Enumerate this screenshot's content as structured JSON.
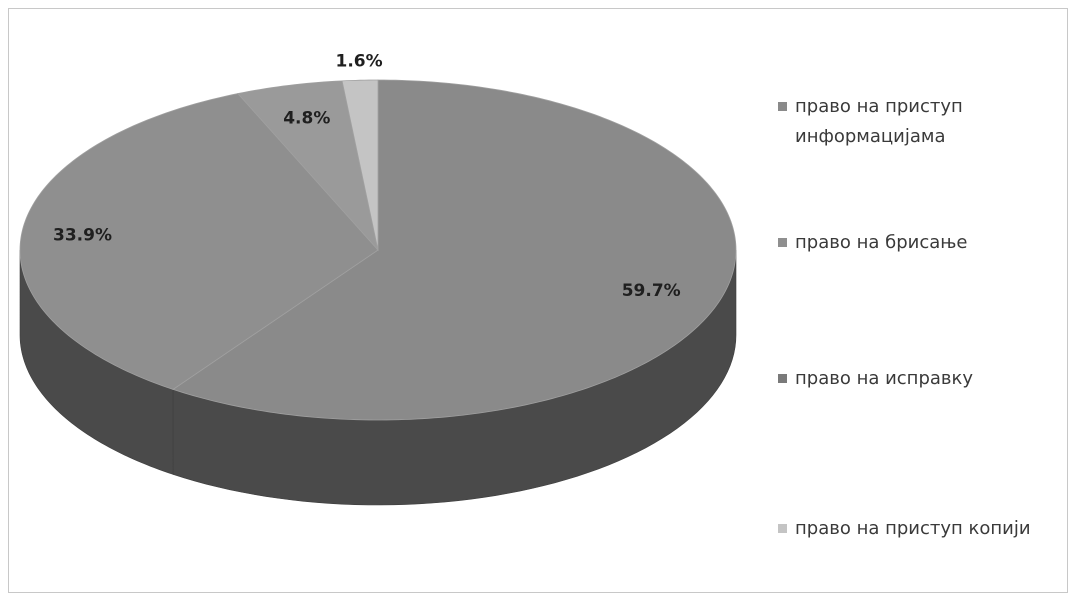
{
  "chart_data": {
    "type": "pie",
    "style": "3d",
    "slices": [
      {
        "label": "право на приступ информацијама",
        "value": 59.7,
        "display": "59.7%",
        "color": "#8a8a8a"
      },
      {
        "label": "право на брисање",
        "value": 33.9,
        "display": "33.9%",
        "color": "#8f8f8f"
      },
      {
        "label": "право на исправку",
        "value": 4.8,
        "display": "4.8%",
        "color": "#9a9a9a"
      },
      {
        "label": "право на приступ копији",
        "value": 1.6,
        "display": "1.6%",
        "color": "#c4c4c4"
      }
    ],
    "side_color": "#4a4a4a",
    "legend_position": "right"
  }
}
